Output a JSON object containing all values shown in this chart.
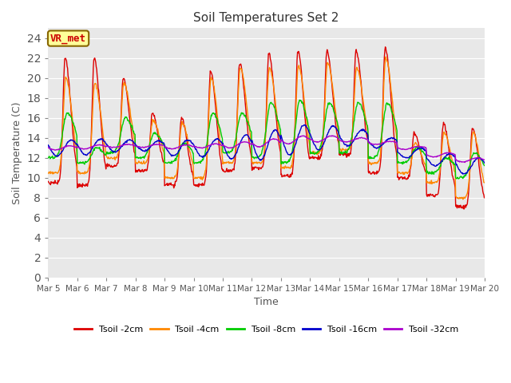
{
  "title": "Soil Temperatures Set 2",
  "xlabel": "Time",
  "ylabel": "Soil Temperature (C)",
  "annotation_text": "VR_met",
  "annotation_color": "#cc0000",
  "annotation_bg": "#ffff99",
  "annotation_border": "#886600",
  "bg_color": "#e8e8e8",
  "ylim": [
    0,
    25
  ],
  "yticks": [
    0,
    2,
    4,
    6,
    8,
    10,
    12,
    14,
    16,
    18,
    20,
    22,
    24
  ],
  "xtick_labels": [
    "Mar 5",
    "Mar 6",
    "Mar 7",
    "Mar 8",
    "Mar 9",
    "Mar 10",
    "Mar 11",
    "Mar 12",
    "Mar 13",
    "Mar 14",
    "Mar 15",
    "Mar 16",
    "Mar 17",
    "Mar 18",
    "Mar 19",
    "Mar 20"
  ],
  "series_colors": [
    "#dd0000",
    "#ff8800",
    "#00cc00",
    "#0000cc",
    "#aa00cc"
  ],
  "series_labels": [
    "Tsoil -2cm",
    "Tsoil -4cm",
    "Tsoil -8cm",
    "Tsoil -16cm",
    "Tsoil -32cm"
  ],
  "line_width": 1.0
}
